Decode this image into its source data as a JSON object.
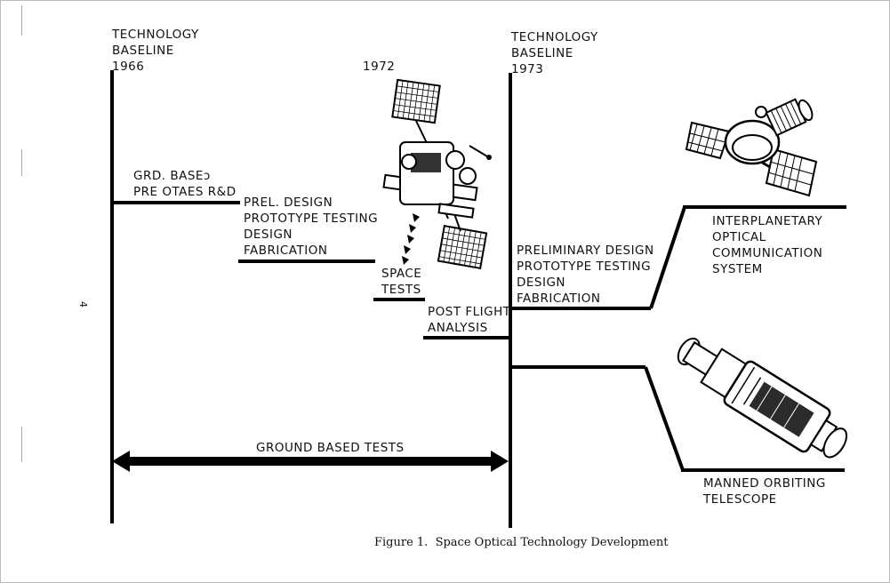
{
  "page_number": "4",
  "baseline_left": {
    "line1": "TECHNOLOGY",
    "line2": "BASELINE",
    "year": "1966"
  },
  "year_mid": "1972",
  "baseline_right": {
    "line1": "TECHNOLOGY",
    "line2": "BASELINE",
    "year": "1973"
  },
  "phases": {
    "grd_based": [
      "GRD. BASEɔ",
      "PRE OTAES R&D"
    ],
    "prel_design": [
      "PREL. DESIGN",
      "PROTOTYPE TESTING",
      "DESIGN",
      "FABRICATION"
    ],
    "space_tests": [
      "SPACE",
      "TESTS"
    ],
    "post_flight": [
      "POST FLIGHT",
      "ANALYSIS"
    ],
    "preliminary_design": [
      "PRELIMINARY DESIGN",
      "PROTOTYPE TESTING",
      "DESIGN",
      "FABRICATION"
    ]
  },
  "outcomes": {
    "interplanetary": [
      "INTERPLANETARY",
      "OPTICAL",
      "COMMUNICATION",
      "SYSTEM"
    ],
    "telescope": [
      "MANNED ORBITING",
      "TELESCOPE"
    ]
  },
  "ground_tests": "GROUND BASED TESTS",
  "caption": "Figure 1.  Space Optical Technology Development"
}
